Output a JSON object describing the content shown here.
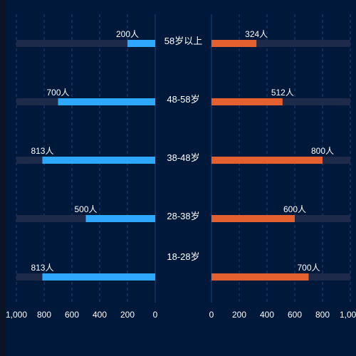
{
  "chart_data": {
    "type": "bar",
    "orientation": "horizontal",
    "layout": "mirrored",
    "categories": [
      "58岁以上",
      "48-58岁",
      "38-48岁",
      "28-38岁",
      "18-28岁"
    ],
    "series": [
      {
        "values": [
          200,
          700,
          813,
          500,
          813
        ],
        "color": "#2ea7ff",
        "side": "left"
      },
      {
        "values": [
          324,
          512,
          800,
          600,
          700
        ],
        "color": "#e4602f",
        "side": "right"
      }
    ],
    "value_labels": {
      "left": [
        "200人",
        "700人",
        "813人",
        "500人",
        "813人"
      ],
      "right": [
        "324人",
        "512人",
        "800人",
        "600人",
        "700人"
      ]
    },
    "xlim": [
      0,
      1000
    ],
    "x_ticks": [
      0,
      200,
      400,
      600,
      800,
      1000
    ],
    "x_tick_labels": [
      "0",
      "200",
      "400",
      "600",
      "800",
      "1,000"
    ],
    "track_max": 1000,
    "grid": true,
    "colors": {
      "background": "#00183a",
      "track": "#1e2a4a",
      "grid": "#1c4578",
      "text": "#ffffff"
    }
  }
}
